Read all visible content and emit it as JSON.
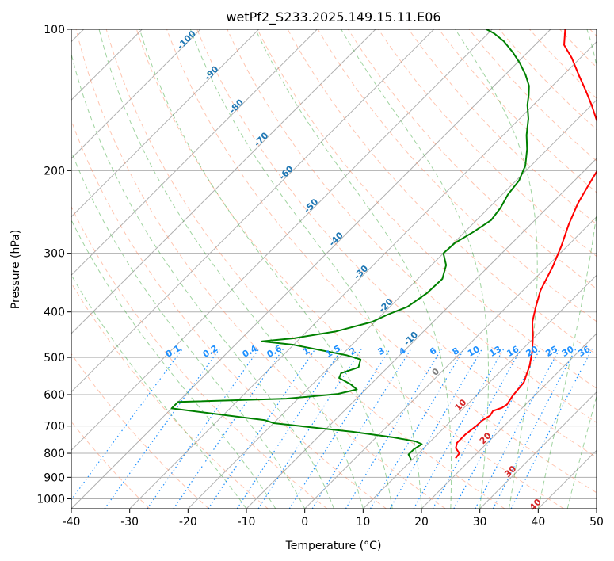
{
  "chart_data": {
    "type": "line",
    "subtype": "skew-T log-P diagram",
    "title": "wetPf2_S233.2025.149.15.11.E06",
    "xlabel": "Temperature (°C)",
    "ylabel": "Pressure (hPa)",
    "xlim": [
      -40,
      50
    ],
    "ylim": [
      1050,
      100
    ],
    "yscale": "log",
    "grid": true,
    "x_ticks": [
      -40,
      -30,
      -20,
      -10,
      0,
      10,
      20,
      30,
      40,
      50
    ],
    "y_ticks": [
      100,
      200,
      300,
      400,
      500,
      600,
      700,
      800,
      900,
      1000
    ],
    "colors": {
      "temperature": "#ff0000",
      "dewpoint": "#008000",
      "isotherm": "#999999",
      "dry_adiabat": "#ff7f50",
      "moist_adiabat": "#2ca02c",
      "mixing_ratio": "#1e90ff",
      "theta_label": "#1f77b4",
      "theta_label_red": "#d62728",
      "zero_label": "#808080"
    },
    "isotherm_labels": [
      -100,
      -90,
      -80,
      -70,
      -60,
      -50,
      -40,
      -30,
      -20,
      -10,
      0,
      10,
      20,
      30,
      40
    ],
    "mixing_ratio_labels": [
      "0.1",
      "0.2",
      "0.4",
      "0.6",
      "1",
      "1.5",
      "2",
      "3",
      "4",
      "6",
      "8",
      "10",
      "13",
      "16",
      "20",
      "25",
      "30",
      "36"
    ],
    "series": [
      {
        "key": "temperature",
        "points": [
          [
            17.2,
            820
          ],
          [
            17.0,
            800
          ],
          [
            15.5,
            780
          ],
          [
            14.8,
            760
          ],
          [
            14.8,
            730
          ],
          [
            15.2,
            700
          ],
          [
            15.3,
            680
          ],
          [
            15.8,
            665
          ],
          [
            15.5,
            650
          ],
          [
            16.5,
            640
          ],
          [
            16.8,
            630
          ],
          [
            16.3,
            605
          ],
          [
            15.9,
            565
          ],
          [
            14.0,
            520
          ],
          [
            12.0,
            485
          ],
          [
            9.5,
            450
          ],
          [
            7.0,
            420
          ],
          [
            5.0,
            390
          ],
          [
            3.0,
            360
          ],
          [
            1.0,
            320
          ],
          [
            -1.0,
            290
          ],
          [
            -3.5,
            260
          ],
          [
            -5.5,
            235
          ],
          [
            -6.8,
            215
          ],
          [
            -7.8,
            200
          ],
          [
            -9.5,
            185
          ],
          [
            -12.5,
            170
          ],
          [
            -16.0,
            158
          ],
          [
            -20.0,
            145
          ],
          [
            -23.5,
            135
          ],
          [
            -27.0,
            126
          ],
          [
            -31.5,
            115
          ],
          [
            -35.0,
            108
          ],
          [
            -37.5,
            100
          ]
        ]
      },
      {
        "key": "dewpoint",
        "points": [
          [
            9.8,
            825
          ],
          [
            8.5,
            805
          ],
          [
            8.5,
            785
          ],
          [
            9.0,
            765
          ],
          [
            7.5,
            755
          ],
          [
            3.0,
            740
          ],
          [
            -5.0,
            720
          ],
          [
            -15.0,
            700
          ],
          [
            -20.0,
            690
          ],
          [
            -22.0,
            680
          ],
          [
            -40.0,
            642
          ],
          [
            -40.0,
            622
          ],
          [
            -22.0,
            612
          ],
          [
            -14.0,
            598
          ],
          [
            -11.5,
            585
          ],
          [
            -13.5,
            570
          ],
          [
            -16.5,
            553
          ],
          [
            -17.0,
            540
          ],
          [
            -15.0,
            525
          ],
          [
            -16.0,
            505
          ],
          [
            -19.0,
            495
          ],
          [
            -30.0,
            470
          ],
          [
            -36.0,
            462
          ],
          [
            -31.0,
            455
          ],
          [
            -25.0,
            440
          ],
          [
            -20.5,
            420
          ],
          [
            -19.0,
            405
          ],
          [
            -17.0,
            390
          ],
          [
            -16.0,
            365
          ],
          [
            -15.8,
            340
          ],
          [
            -17.5,
            318
          ],
          [
            -20.0,
            300
          ],
          [
            -19.8,
            285
          ],
          [
            -18.5,
            270
          ],
          [
            -17.5,
            255
          ],
          [
            -18.0,
            240
          ],
          [
            -19.0,
            225
          ],
          [
            -19.5,
            210
          ],
          [
            -21.0,
            195
          ],
          [
            -23.5,
            180
          ],
          [
            -26.0,
            168
          ],
          [
            -28.5,
            155
          ],
          [
            -31.0,
            145
          ],
          [
            -32.5,
            138
          ],
          [
            -34.0,
            132
          ],
          [
            -36.5,
            125
          ],
          [
            -39.5,
            118
          ],
          [
            -42.5,
            112
          ],
          [
            -46.0,
            106
          ],
          [
            -49.0,
            102
          ],
          [
            -51.0,
            100
          ]
        ]
      }
    ]
  }
}
